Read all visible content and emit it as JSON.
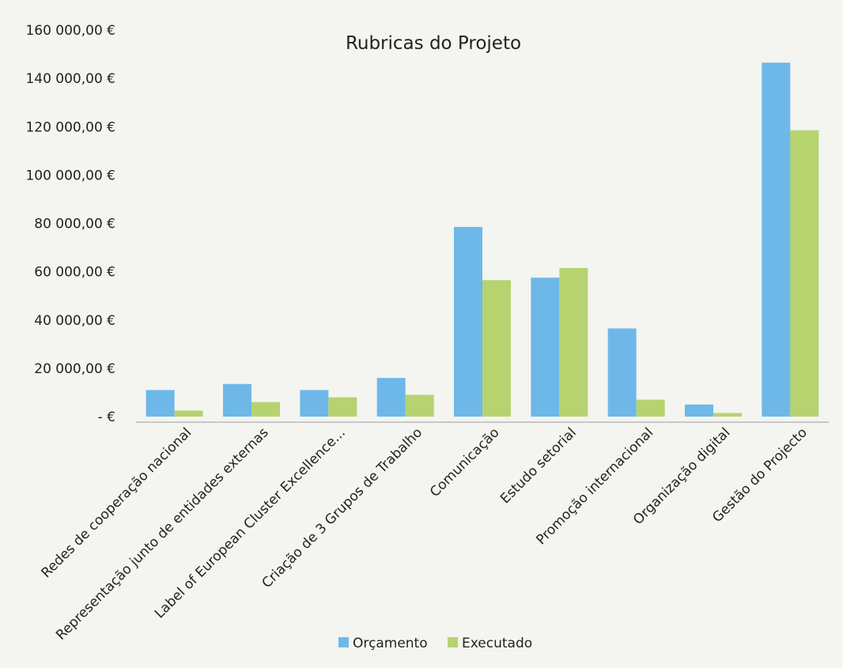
{
  "chart_data": {
    "type": "bar",
    "title": "Rubricas do Projeto",
    "xlabel": "",
    "ylabel": "",
    "categories": [
      "Redes de cooperação nacional",
      "Representação junto de entidades externas",
      "Label of European Cluster Excellence...",
      "Criação de 3 Grupos de Trabalho",
      "Comunicação",
      "Estudo setorial",
      "Promoção internacional",
      "Organização digital",
      "Gestão do Projecto"
    ],
    "series": [
      {
        "name": "Orçamento",
        "color": "#6db8e8",
        "values": [
          11000,
          13500,
          11000,
          16000,
          78500,
          57500,
          36500,
          5000,
          146500
        ]
      },
      {
        "name": "Executado",
        "color": "#b6d370",
        "values": [
          2500,
          6000,
          8000,
          9000,
          56500,
          61500,
          7000,
          1500,
          118500
        ]
      }
    ],
    "ylim": [
      0,
      160000
    ],
    "yticks": [
      0,
      20000,
      40000,
      60000,
      80000,
      100000,
      120000,
      140000,
      160000
    ],
    "ytick_labels": [
      "-   €",
      "20 000,00 €",
      "40 000,00 €",
      "60 000,00 €",
      "80 000,00 €",
      "100 000,00 €",
      "120 000,00 €",
      "140 000,00 €",
      "160 000,00 €"
    ],
    "grid": false,
    "legend_position": "bottom"
  }
}
